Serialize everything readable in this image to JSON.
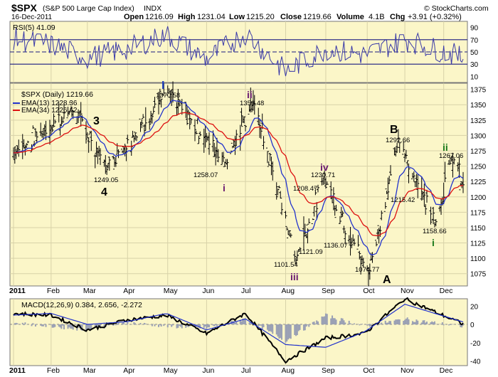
{
  "header": {
    "symbol": "$SPX",
    "name": "(S&P 500 Large Cap Index)",
    "exchange": "INDX",
    "date": "16-Dec-2011",
    "open_label": "Open",
    "open": "1216.09",
    "high_label": "High",
    "high": "1231.04",
    "low_label": "Low",
    "low": "1215.20",
    "close_label": "Close",
    "close": "1219.66",
    "volume_label": "Volume",
    "volume": "4.1B",
    "chg_label": "Chg",
    "chg": "+3.91 (+0.32%)",
    "credit": "© StockCharts.com"
  },
  "colors": {
    "panel_bg": "#fbf6c8",
    "ema13": "#2233cc",
    "ema34": "#dd1111",
    "rsi": "#3a3aa8",
    "macd": "#000000",
    "signal": "#2233cc",
    "hist": "#9aa0b4",
    "wave_blue": "#1f3fbf",
    "wave_purple": "#6a1a70",
    "wave_green": "#1a7a1a"
  },
  "months": [
    "2011",
    "Feb",
    "Mar",
    "Apr",
    "May",
    "Jun",
    "Jul",
    "Aug",
    "Sep",
    "Oct",
    "Nov",
    "Dec"
  ],
  "chart_data": [
    {
      "type": "line",
      "panel": "rsi",
      "legend": "RSI(5) 41.09",
      "ylim": [
        0,
        100
      ],
      "yticks": [
        10,
        30,
        50,
        70,
        90
      ],
      "levels": [
        30,
        70
      ],
      "x": [
        "2011-01",
        "2011-02",
        "2011-03",
        "2011-04",
        "2011-05",
        "2011-06",
        "2011-07",
        "2011-08",
        "2011-09",
        "2011-10",
        "2011-11",
        "2011-12-16"
      ],
      "values": [
        72,
        62,
        40,
        55,
        78,
        38,
        80,
        18,
        55,
        45,
        70,
        41
      ]
    },
    {
      "type": "candlestick",
      "panel": "price",
      "series_labels": {
        "price": "$SPX (Daily) 1219.66",
        "ema13": "EMA(13) 1228.36",
        "ema34": "EMA(34) 1226.42"
      },
      "ylim": [
        1055,
        1385
      ],
      "yticks": [
        1075,
        1100,
        1125,
        1150,
        1175,
        1200,
        1225,
        1250,
        1275,
        1300,
        1325,
        1350,
        1375
      ],
      "anchors": [
        {
          "x": "2011-01-03",
          "y": 1271
        },
        {
          "x": "2011-02-18",
          "y": 1343
        },
        {
          "x": "2011-03-16",
          "y": 1249.05
        },
        {
          "x": "2011-05-02",
          "y": 1370.58
        },
        {
          "x": "2011-06-16",
          "y": 1258.07
        },
        {
          "x": "2011-07-07",
          "y": 1356.48
        },
        {
          "x": "2011-08-09",
          "y": 1101.54
        },
        {
          "x": "2011-08-31",
          "y": 1230.71
        },
        {
          "x": "2011-10-04",
          "y": 1074.77
        },
        {
          "x": "2011-10-27",
          "y": 1292.66
        },
        {
          "x": "2011-11-25",
          "y": 1158.66
        },
        {
          "x": "2011-12-07",
          "y": 1267.06
        },
        {
          "x": "2011-12-16",
          "y": 1219.66
        }
      ],
      "price_labels": [
        "1370.58",
        "1356.48",
        "1249.05",
        "1258.07",
        "1208.47",
        "1230.71",
        "1101.54",
        "1121.09",
        "1136.07",
        "1074.77",
        "1292.66",
        "1215.42",
        "1158.66",
        "1267.06"
      ],
      "wave_labels": [
        {
          "text": "I",
          "color": "wave_blue"
        },
        {
          "text": "3",
          "color": "black"
        },
        {
          "text": "4",
          "color": "black"
        },
        {
          "text": "i",
          "color": "wave_purple"
        },
        {
          "text": "ii",
          "color": "wave_purple"
        },
        {
          "text": "iii",
          "color": "wave_purple"
        },
        {
          "text": "iv",
          "color": "wave_purple"
        },
        {
          "text": "A",
          "color": "black"
        },
        {
          "text": "B",
          "color": "black"
        },
        {
          "text": "i",
          "color": "wave_green"
        },
        {
          "text": "ii",
          "color": "wave_green"
        }
      ]
    },
    {
      "type": "line",
      "panel": "macd",
      "legend": "MACD(12,26,9) 0.384, 2.656, -2.272",
      "ylim": [
        -45,
        28
      ],
      "yticks": [
        -40,
        -20,
        0,
        20
      ],
      "x": [
        "2011-01",
        "2011-02",
        "2011-03",
        "2011-04",
        "2011-05",
        "2011-06",
        "2011-07",
        "2011-08",
        "2011-09",
        "2011-10",
        "2011-11",
        "2011-12-16"
      ],
      "series": [
        {
          "name": "MACD",
          "values": [
            12,
            10,
            -6,
            5,
            10,
            -10,
            12,
            -40,
            -15,
            -10,
            28,
            0.384
          ]
        },
        {
          "name": "Signal",
          "values": [
            10,
            12,
            0,
            3,
            12,
            -6,
            6,
            -22,
            -25,
            -8,
            22,
            2.656
          ]
        }
      ]
    }
  ]
}
